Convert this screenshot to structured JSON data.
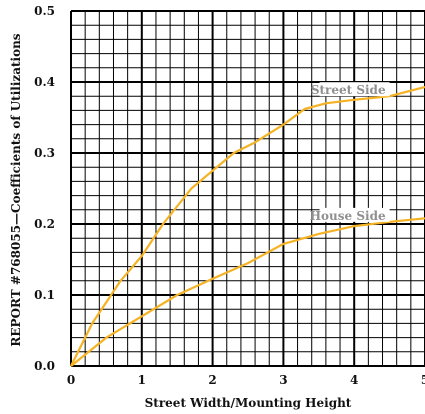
{
  "chart_data": {
    "type": "line",
    "xlabel": "Street Width/Mounting Height",
    "ylabel": "REPORT #768055—Coefficients of Utilizations",
    "xlim": [
      0,
      5
    ],
    "ylim": [
      0,
      0.5
    ],
    "x_ticks": [
      "0",
      "1",
      "2",
      "3",
      "4",
      "5"
    ],
    "y_ticks": [
      "0.0",
      "0.1",
      "0.2",
      "0.3",
      "0.4",
      "0.5"
    ],
    "grid": true,
    "minor_grid_step_x": 0.2,
    "minor_grid_step_y": 0.02,
    "line_color": "#f5b324",
    "label_color": "#8f8f8f",
    "series": [
      {
        "name": "Street Side",
        "points": [
          [
            0,
            0
          ],
          [
            0.3,
            0.06
          ],
          [
            0.7,
            0.12
          ],
          [
            1.0,
            0.155
          ],
          [
            1.3,
            0.2
          ],
          [
            1.7,
            0.25
          ],
          [
            2.0,
            0.275
          ],
          [
            2.3,
            0.3
          ],
          [
            2.6,
            0.315
          ],
          [
            3.0,
            0.34
          ],
          [
            3.3,
            0.362
          ],
          [
            3.6,
            0.37
          ],
          [
            4.0,
            0.375
          ],
          [
            4.5,
            0.38
          ],
          [
            5.0,
            0.393
          ]
        ]
      },
      {
        "name": "House Side",
        "points": [
          [
            0,
            0
          ],
          [
            0.5,
            0.04
          ],
          [
            1.0,
            0.07
          ],
          [
            1.5,
            0.1
          ],
          [
            2.0,
            0.123
          ],
          [
            2.5,
            0.145
          ],
          [
            3.0,
            0.172
          ],
          [
            3.5,
            0.186
          ],
          [
            4.0,
            0.197
          ],
          [
            4.5,
            0.203
          ],
          [
            5.0,
            0.208
          ]
        ]
      }
    ]
  }
}
